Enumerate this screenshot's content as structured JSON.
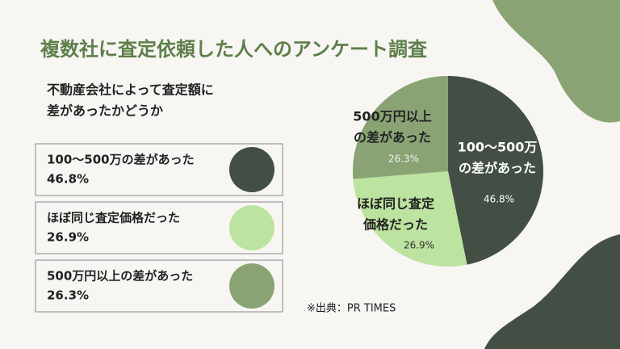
{
  "chart_data": {
    "type": "pie",
    "title": "複数社に査定依頼した人へのアンケート調査",
    "subtitle": [
      "不動産会社によって査定額に",
      "差があったかどうか"
    ],
    "categories": [
      "100〜500万の差があった",
      "ほぼ同じ査定価格だった",
      "500万円以上の差があった"
    ],
    "pie_labels": [
      [
        "100〜500万",
        "の差があった"
      ],
      [
        "ほぼ同じ査定",
        "価格だった"
      ],
      [
        "500万円以上",
        "の差があった"
      ]
    ],
    "values": [
      46.8,
      26.9,
      26.3
    ],
    "value_labels": [
      "46.8%",
      "26.9%",
      "26.3%"
    ],
    "colors": [
      "#434f45",
      "#bde3a0",
      "#8aa374"
    ],
    "source": "※出典：PR TIMES"
  }
}
